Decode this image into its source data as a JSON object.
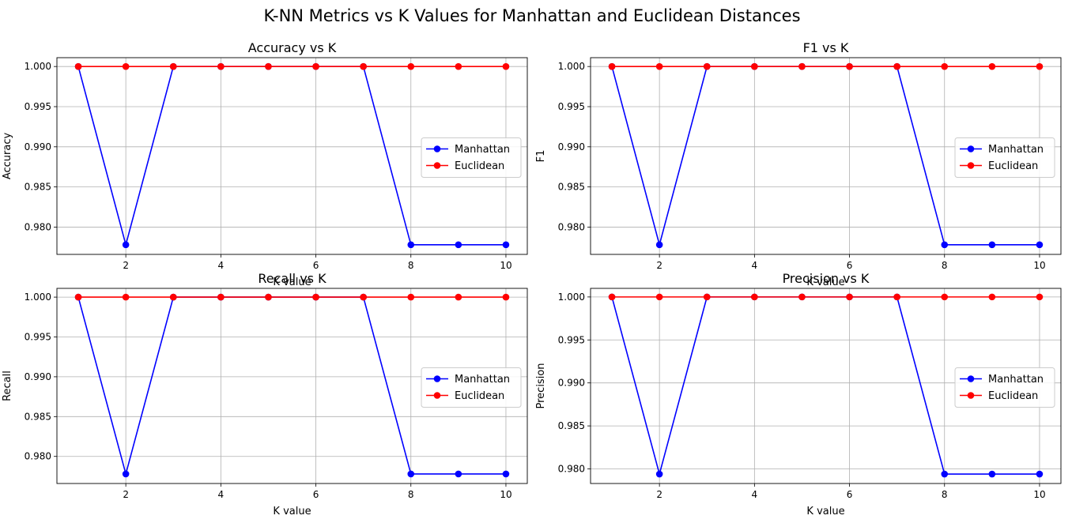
{
  "figure": {
    "suptitle": "K-NN Metrics vs K Values for Manhattan and Euclidean Distances"
  },
  "chart_data": [
    {
      "type": "line",
      "title": "Accuracy vs K",
      "xlabel": "K value",
      "ylabel": "Accuracy",
      "x": [
        1,
        2,
        3,
        4,
        5,
        6,
        7,
        8,
        9,
        10
      ],
      "xticks": [
        "2",
        "4",
        "6",
        "8",
        "10"
      ],
      "yticks": [
        "0.980",
        "0.985",
        "0.990",
        "0.995",
        "1.000"
      ],
      "xlim": [
        0.55,
        10.45
      ],
      "ylim": [
        0.9766,
        1.0011
      ],
      "grid": true,
      "legend_position": "center-right",
      "series": [
        {
          "name": "Manhattan",
          "color": "#0000ff",
          "marker": "circle",
          "values": [
            1.0,
            0.9778,
            1.0,
            1.0,
            1.0,
            1.0,
            1.0,
            0.9778,
            0.9778,
            0.9778
          ]
        },
        {
          "name": "Euclidean",
          "color": "#ff0000",
          "marker": "circle",
          "values": [
            1.0,
            1.0,
            1.0,
            1.0,
            1.0,
            1.0,
            1.0,
            1.0,
            1.0,
            1.0
          ]
        }
      ]
    },
    {
      "type": "line",
      "title": "F1 vs K",
      "xlabel": "K value",
      "ylabel": "F1",
      "x": [
        1,
        2,
        3,
        4,
        5,
        6,
        7,
        8,
        9,
        10
      ],
      "xticks": [
        "2",
        "4",
        "6",
        "8",
        "10"
      ],
      "yticks": [
        "0.980",
        "0.985",
        "0.990",
        "0.995",
        "1.000"
      ],
      "xlim": [
        0.55,
        10.45
      ],
      "ylim": [
        0.9766,
        1.0011
      ],
      "grid": true,
      "legend_position": "center-right",
      "series": [
        {
          "name": "Manhattan",
          "color": "#0000ff",
          "marker": "circle",
          "values": [
            1.0,
            0.9778,
            1.0,
            1.0,
            1.0,
            1.0,
            1.0,
            0.9778,
            0.9778,
            0.9778
          ]
        },
        {
          "name": "Euclidean",
          "color": "#ff0000",
          "marker": "circle",
          "values": [
            1.0,
            1.0,
            1.0,
            1.0,
            1.0,
            1.0,
            1.0,
            1.0,
            1.0,
            1.0
          ]
        }
      ]
    },
    {
      "type": "line",
      "title": "Recall vs K",
      "xlabel": "K value",
      "ylabel": "Recall",
      "x": [
        1,
        2,
        3,
        4,
        5,
        6,
        7,
        8,
        9,
        10
      ],
      "xticks": [
        "2",
        "4",
        "6",
        "8",
        "10"
      ],
      "yticks": [
        "0.980",
        "0.985",
        "0.990",
        "0.995",
        "1.000"
      ],
      "xlim": [
        0.55,
        10.45
      ],
      "ylim": [
        0.9766,
        1.0011
      ],
      "grid": true,
      "legend_position": "center-right",
      "series": [
        {
          "name": "Manhattan",
          "color": "#0000ff",
          "marker": "circle",
          "values": [
            1.0,
            0.9778,
            1.0,
            1.0,
            1.0,
            1.0,
            1.0,
            0.9778,
            0.9778,
            0.9778
          ]
        },
        {
          "name": "Euclidean",
          "color": "#ff0000",
          "marker": "circle",
          "values": [
            1.0,
            1.0,
            1.0,
            1.0,
            1.0,
            1.0,
            1.0,
            1.0,
            1.0,
            1.0
          ]
        }
      ]
    },
    {
      "type": "line",
      "title": "Precision vs K",
      "xlabel": "K value",
      "ylabel": "Precision",
      "x": [
        1,
        2,
        3,
        4,
        5,
        6,
        7,
        8,
        9,
        10
      ],
      "xticks": [
        "2",
        "4",
        "6",
        "8",
        "10"
      ],
      "yticks": [
        "0.980",
        "0.985",
        "0.990",
        "0.995",
        "1.000"
      ],
      "xlim": [
        0.55,
        10.45
      ],
      "ylim": [
        0.9783,
        1.001
      ],
      "grid": true,
      "legend_position": "center-right",
      "series": [
        {
          "name": "Manhattan",
          "color": "#0000ff",
          "marker": "circle",
          "values": [
            1.0,
            0.9794,
            1.0,
            1.0,
            1.0,
            1.0,
            1.0,
            0.9794,
            0.9794,
            0.9794
          ]
        },
        {
          "name": "Euclidean",
          "color": "#ff0000",
          "marker": "circle",
          "values": [
            1.0,
            1.0,
            1.0,
            1.0,
            1.0,
            1.0,
            1.0,
            1.0,
            1.0,
            1.0
          ]
        }
      ]
    }
  ]
}
